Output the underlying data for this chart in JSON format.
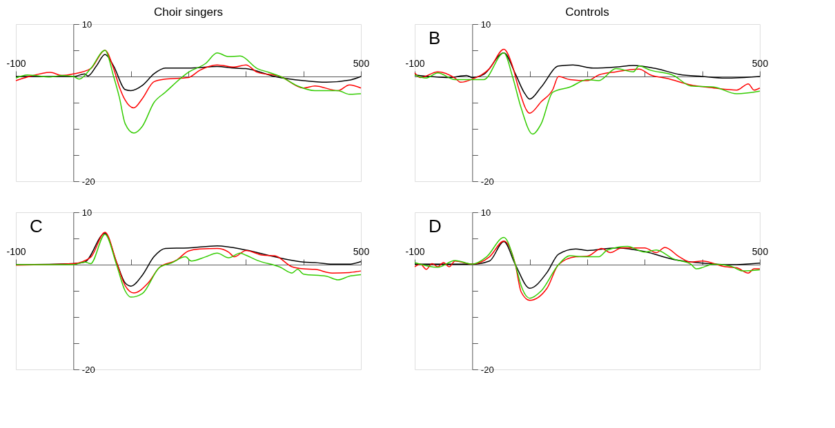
{
  "chart_data": [
    {
      "type": "line",
      "title": "Choir singers",
      "xlim": [
        -100,
        500
      ],
      "ylim": [
        -20,
        10
      ],
      "xticks": [
        {
          "value": -100,
          "label": "-100"
        },
        {
          "value": 100,
          "label": null
        },
        {
          "value": 200,
          "label": null
        },
        {
          "value": 300,
          "label": null
        },
        {
          "value": 400,
          "label": null
        },
        {
          "value": 500,
          "label": "500"
        }
      ],
      "yticks": [
        {
          "value": 10,
          "label": "10"
        },
        {
          "value": 5,
          "label": null
        },
        {
          "value": -5,
          "label": null
        },
        {
          "value": -10,
          "label": null
        },
        {
          "value": -15,
          "label": null
        },
        {
          "value": -20,
          "label": "-20"
        }
      ],
      "series": [
        {
          "color": "#000000",
          "x": [
            -100,
            -50,
            0,
            20,
            25,
            40,
            55,
            70,
            90,
            100,
            120,
            140,
            160,
            200,
            250,
            280,
            300,
            350,
            400,
            440,
            480,
            500
          ],
          "values": [
            0,
            0,
            0,
            0.5,
            0.1,
            2,
            4.2,
            2,
            -2.5,
            -2.7,
            -1.7,
            0.5,
            1.6,
            1.6,
            1.9,
            1.6,
            1.5,
            0,
            -0.8,
            -1.1,
            -0.7,
            0
          ]
        },
        {
          "color": "#ff0000",
          "x": [
            -100,
            -80,
            -40,
            -20,
            0,
            30,
            55,
            70,
            80,
            90,
            105,
            120,
            140,
            160,
            200,
            220,
            250,
            280,
            300,
            320,
            360,
            400,
            420,
            460,
            480,
            500
          ],
          "values": [
            -0.8,
            -0.1,
            0.8,
            0.2,
            0.5,
            1.5,
            5,
            1.5,
            -2,
            -4.5,
            -6,
            -4.2,
            -1,
            -0.5,
            -0.2,
            1.2,
            2.2,
            1.8,
            2.2,
            0.8,
            0,
            -2.2,
            -1.8,
            -2.7,
            -1.6,
            -2.2
          ]
        },
        {
          "color": "#33cc00",
          "x": [
            -100,
            -80,
            -40,
            -20,
            0,
            10,
            30,
            55,
            70,
            80,
            90,
            105,
            120,
            140,
            160,
            200,
            230,
            250,
            270,
            290,
            320,
            340,
            360,
            390,
            420,
            460,
            480,
            500
          ],
          "values": [
            -0.3,
            0.3,
            -0.1,
            0.2,
            0,
            -0.5,
            1.5,
            5,
            0,
            -4,
            -9,
            -10.8,
            -9.5,
            -5,
            -3,
            0.8,
            2.5,
            4.5,
            3.8,
            3.9,
            1.5,
            0.8,
            0,
            -1.8,
            -2.7,
            -2.7,
            -3.4,
            -3.3
          ]
        }
      ]
    },
    {
      "type": "line",
      "title": "Controls",
      "annotations": [
        "B"
      ],
      "xlim": [
        -100,
        500
      ],
      "ylim": [
        -20,
        10
      ],
      "xticks": [
        {
          "value": -100,
          "label": "-100"
        },
        {
          "value": 100,
          "label": null
        },
        {
          "value": 200,
          "label": null
        },
        {
          "value": 300,
          "label": null
        },
        {
          "value": 400,
          "label": null
        },
        {
          "value": 500,
          "label": "500"
        }
      ],
      "yticks": [
        {
          "value": 10,
          "label": "10"
        },
        {
          "value": 5,
          "label": null
        },
        {
          "value": -5,
          "label": null
        },
        {
          "value": -10,
          "label": null
        },
        {
          "value": -15,
          "label": null
        },
        {
          "value": -20,
          "label": "-20"
        }
      ],
      "series": [
        {
          "color": "#000000",
          "x": [
            -100,
            -40,
            -10,
            0,
            20,
            55,
            75,
            90,
            100,
            120,
            150,
            175,
            210,
            250,
            280,
            320,
            360,
            400,
            440,
            500
          ],
          "values": [
            0.3,
            -0.2,
            0.2,
            -0.2,
            0.4,
            4.5,
            0.5,
            -3,
            -4.3,
            -2,
            2,
            2.2,
            1.6,
            1.8,
            2.1,
            1.5,
            0.4,
            0,
            -0.3,
            0
          ]
        },
        {
          "color": "#ff0000",
          "x": [
            -100,
            -90,
            -60,
            -30,
            -20,
            0,
            30,
            55,
            70,
            80,
            100,
            120,
            140,
            150,
            170,
            200,
            220,
            250,
            290,
            310,
            340,
            380,
            420,
            460,
            480,
            490,
            500
          ],
          "values": [
            0.7,
            -0.2,
            0.9,
            -0.3,
            -1.1,
            -0.5,
            1.5,
            5.2,
            2,
            -2,
            -7,
            -4.8,
            -2.5,
            0,
            -0.6,
            -0.8,
            0.3,
            0.9,
            1.4,
            0.3,
            -0.4,
            -1.6,
            -2.2,
            -2.6,
            -1.4,
            -2.6,
            -2.2
          ]
        },
        {
          "color": "#33cc00",
          "x": [
            -100,
            -80,
            -60,
            -30,
            0,
            20,
            55,
            70,
            85,
            105,
            120,
            140,
            170,
            200,
            220,
            250,
            280,
            290,
            310,
            350,
            380,
            420,
            460,
            500
          ],
          "values": [
            0.3,
            -0.3,
            0.7,
            -0.6,
            -0.6,
            -0.6,
            4.5,
            0,
            -6,
            -11,
            -9,
            -3,
            -2,
            -0.6,
            -0.8,
            1.5,
            0.9,
            2,
            1.2,
            0.2,
            -1.8,
            -2,
            -3.3,
            -2.8
          ]
        }
      ]
    },
    {
      "type": "line",
      "annotations": [
        "C"
      ],
      "xlim": [
        -100,
        500
      ],
      "ylim": [
        -20,
        10
      ],
      "xticks": [
        {
          "value": -100,
          "label": "-100"
        },
        {
          "value": 100,
          "label": null
        },
        {
          "value": 200,
          "label": null
        },
        {
          "value": 300,
          "label": null
        },
        {
          "value": 400,
          "label": null
        },
        {
          "value": 500,
          "label": "500"
        }
      ],
      "yticks": [
        {
          "value": 10,
          "label": "10"
        },
        {
          "value": 5,
          "label": null
        },
        {
          "value": -5,
          "label": null
        },
        {
          "value": -10,
          "label": null
        },
        {
          "value": -15,
          "label": null
        },
        {
          "value": -20,
          "label": "-20"
        }
      ],
      "series": [
        {
          "color": "#000000",
          "x": [
            -100,
            0,
            20,
            55,
            75,
            90,
            100,
            120,
            140,
            160,
            200,
            250,
            300,
            350,
            400,
            420,
            450,
            480,
            500
          ],
          "values": [
            0,
            0.2,
            0.5,
            6,
            0.5,
            -3.5,
            -4.1,
            -2,
            1.5,
            3.1,
            3.2,
            3.6,
            2.8,
            1.5,
            0.5,
            0.4,
            0.1,
            0.1,
            0.6
          ]
        },
        {
          "color": "#ff0000",
          "x": [
            -100,
            0,
            30,
            55,
            75,
            90,
            105,
            130,
            150,
            180,
            200,
            220,
            250,
            270,
            280,
            300,
            330,
            350,
            380,
            400,
            420,
            450,
            480,
            500
          ],
          "values": [
            -0.1,
            0.2,
            1.4,
            6.2,
            0.5,
            -4,
            -5.4,
            -3.5,
            -0.5,
            0.9,
            2.6,
            3,
            3.1,
            2.4,
            1.5,
            2.7,
            1.8,
            1.7,
            -0.4,
            -0.8,
            -0.9,
            -1.6,
            -1.5,
            -1.2
          ]
        },
        {
          "color": "#33cc00",
          "x": [
            -100,
            0,
            20,
            30,
            55,
            75,
            90,
            100,
            120,
            150,
            170,
            195,
            205,
            230,
            250,
            270,
            290,
            300,
            320,
            360,
            380,
            390,
            400,
            440,
            460,
            480,
            500
          ],
          "values": [
            0,
            0,
            0.5,
            0.2,
            5.8,
            0,
            -5,
            -6.2,
            -5.5,
            -0.5,
            0.3,
            1.5,
            0.7,
            1.5,
            2.2,
            1.3,
            2.2,
            1.8,
            0.8,
            -0.5,
            -1.6,
            -0.9,
            -1.8,
            -2.2,
            -2.9,
            -2.2,
            -1.9
          ]
        }
      ]
    },
    {
      "type": "line",
      "annotations": [
        "D"
      ],
      "xlim": [
        -100,
        500
      ],
      "ylim": [
        -20,
        10
      ],
      "xticks": [
        {
          "value": -100,
          "label": "-100"
        },
        {
          "value": 100,
          "label": null
        },
        {
          "value": 200,
          "label": null
        },
        {
          "value": 300,
          "label": null
        },
        {
          "value": 400,
          "label": null
        },
        {
          "value": 500,
          "label": "500"
        }
      ],
      "yticks": [
        {
          "value": 10,
          "label": "10"
        },
        {
          "value": 5,
          "label": null
        },
        {
          "value": -5,
          "label": null
        },
        {
          "value": -10,
          "label": null
        },
        {
          "value": -15,
          "label": null
        },
        {
          "value": -20,
          "label": "-20"
        }
      ],
      "series": [
        {
          "color": "#000000",
          "x": [
            -100,
            0,
            30,
            55,
            75,
            100,
            130,
            150,
            180,
            200,
            250,
            300,
            350,
            400,
            450,
            500
          ],
          "values": [
            0.1,
            0.1,
            0.7,
            4.4,
            0,
            -4.5,
            -1.5,
            2,
            3,
            2.7,
            3.2,
            2.5,
            1,
            0.3,
            0,
            0.3
          ]
        },
        {
          "color": "#ff0000",
          "x": [
            -100,
            -90,
            -80,
            -70,
            -60,
            -50,
            -40,
            -30,
            0,
            30,
            55,
            75,
            85,
            100,
            130,
            150,
            180,
            200,
            225,
            240,
            260,
            300,
            320,
            335,
            360,
            380,
            400,
            440,
            460,
            480,
            490,
            500
          ],
          "values": [
            -0.4,
            0.1,
            -0.9,
            0.2,
            -0.4,
            0.4,
            -0.4,
            0.7,
            0.1,
            1.5,
            4.5,
            0,
            -5.2,
            -6.8,
            -4.5,
            0,
            1.5,
            1.6,
            3.1,
            2.3,
            3.2,
            3.2,
            2.3,
            3.3,
            1.5,
            0.5,
            0.7,
            -0.4,
            -0.6,
            -1.6,
            -0.8,
            -0.8
          ]
        },
        {
          "color": "#33cc00",
          "x": [
            -100,
            -60,
            -30,
            0,
            25,
            55,
            75,
            85,
            100,
            120,
            150,
            170,
            190,
            220,
            235,
            270,
            300,
            320,
            350,
            380,
            390,
            420,
            450,
            470,
            500
          ],
          "values": [
            0.4,
            -0.5,
            0.8,
            0.1,
            1.5,
            5.2,
            0,
            -4,
            -6.4,
            -5,
            0,
            1.7,
            1.5,
            1.5,
            2.8,
            3.5,
            2.4,
            2.8,
            1.1,
            0.1,
            -0.8,
            0.1,
            -0.3,
            -1.2,
            -1.0
          ]
        }
      ]
    }
  ]
}
